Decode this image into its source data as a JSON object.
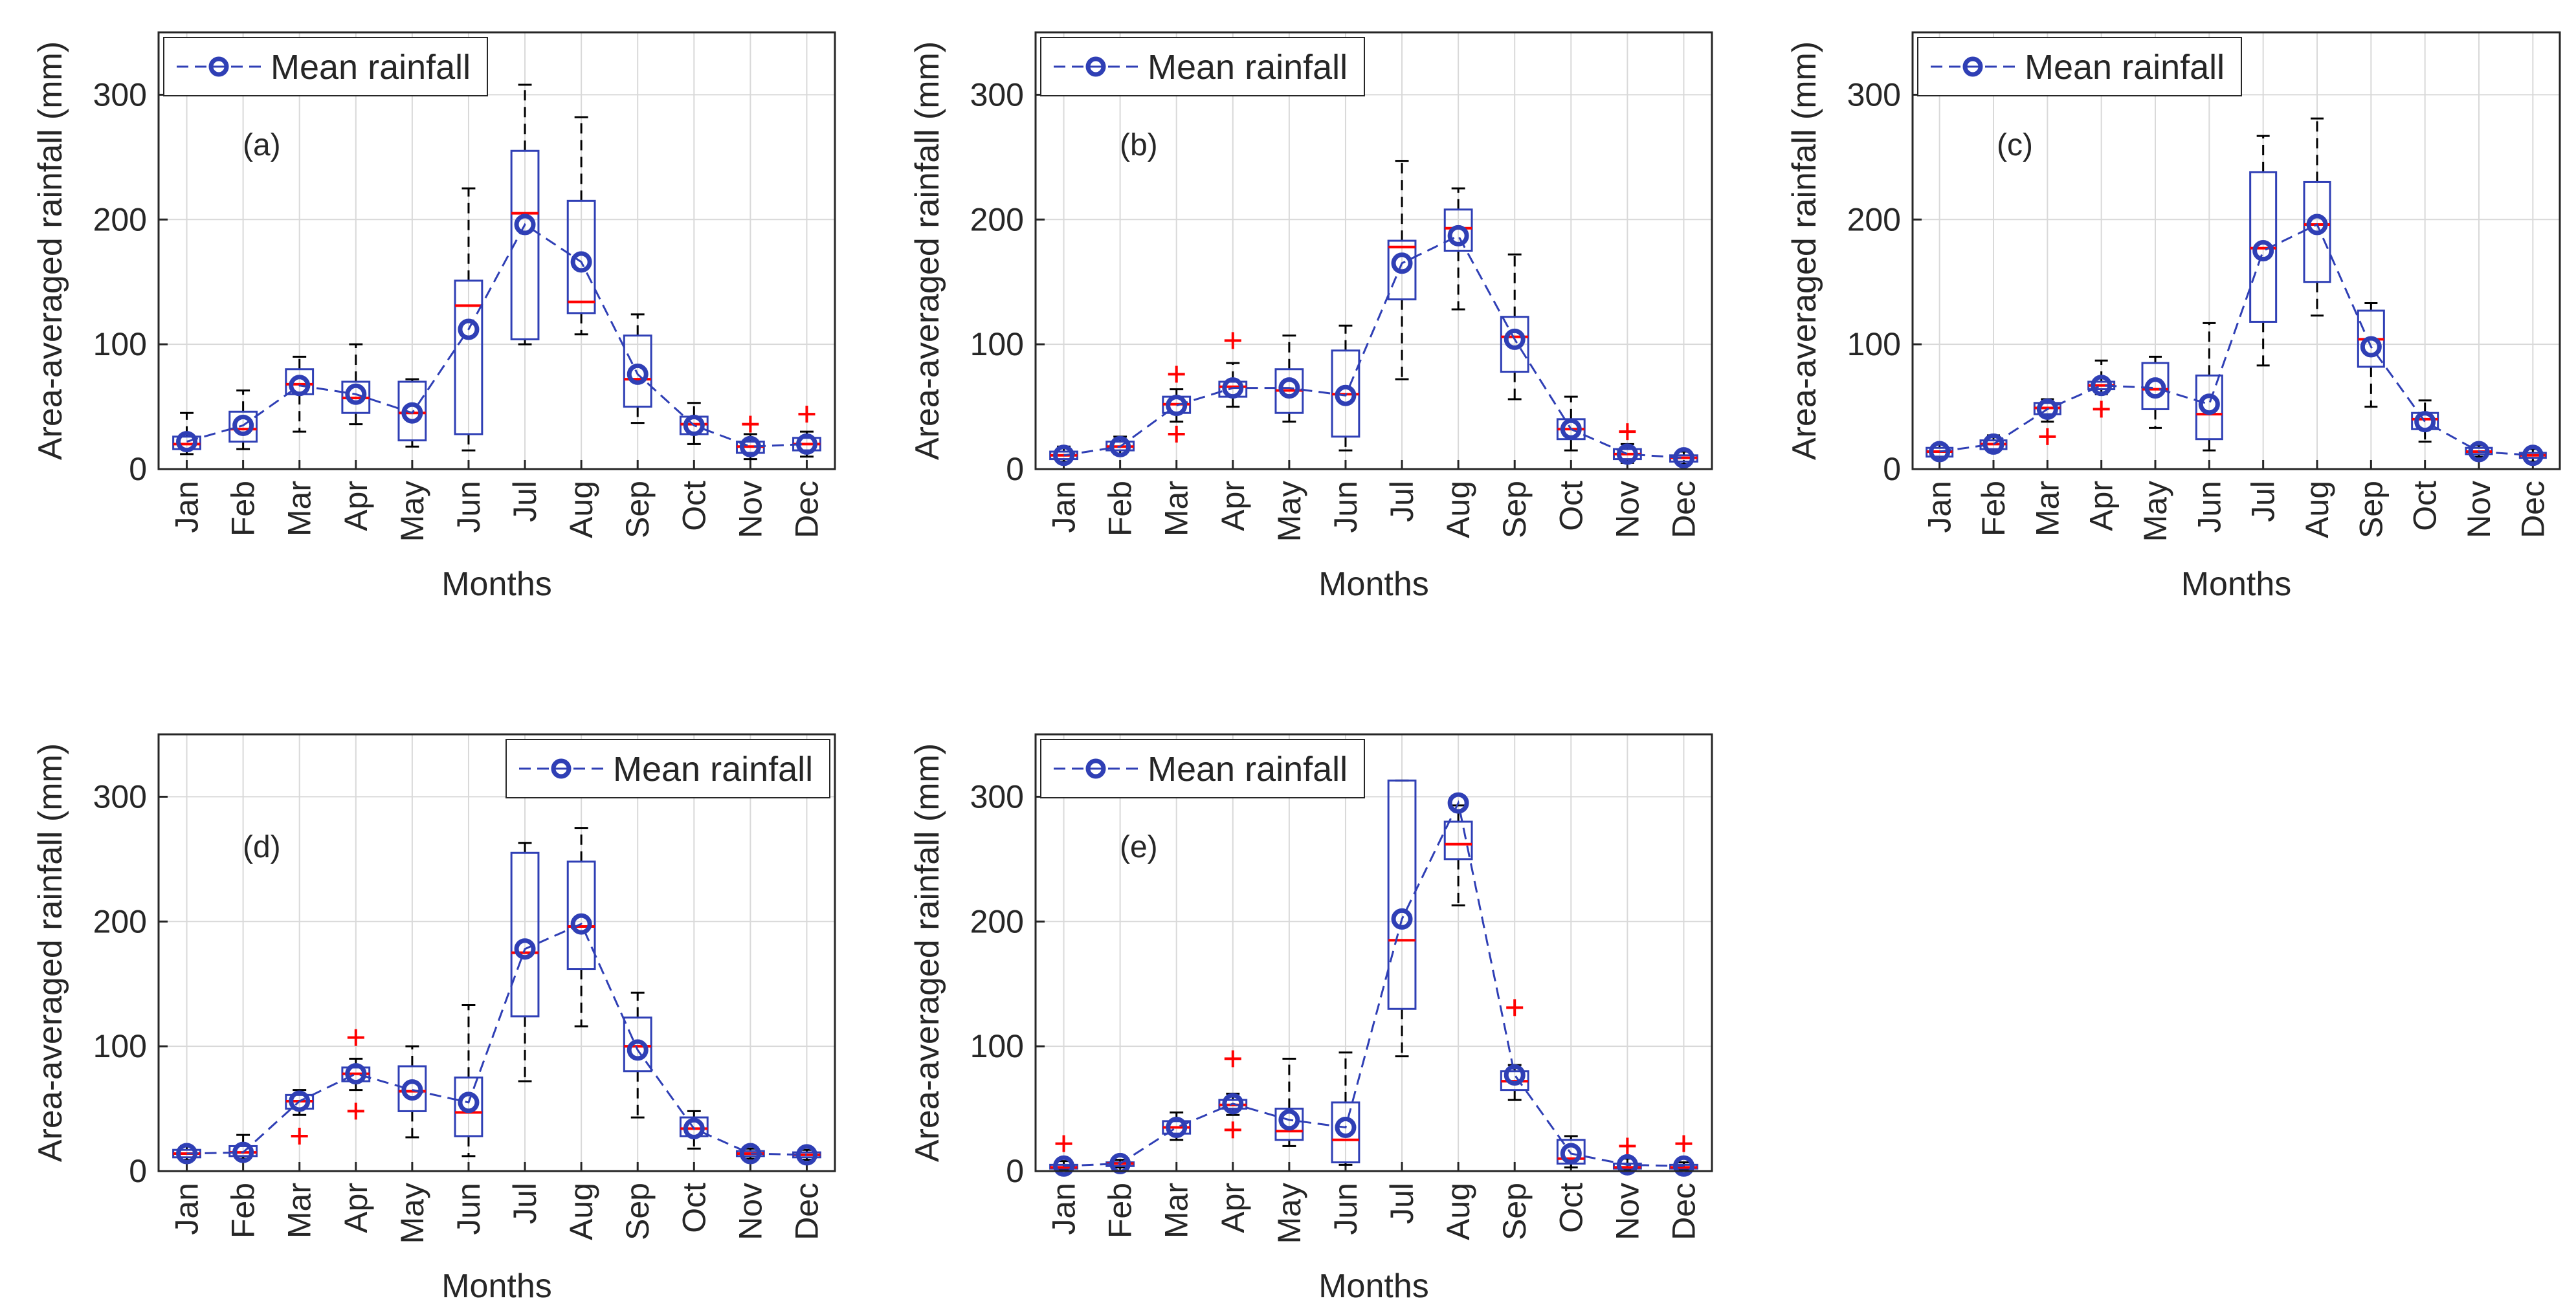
{
  "figure": {
    "colors": {
      "box": "#2f3fb5",
      "median": "#ff0000",
      "outlier": "#ff0000",
      "whisker": "#000000",
      "mean_line": "#2f3fb5",
      "grid": "#d9d9d9",
      "axis": "#262626"
    }
  },
  "chart_data": [
    {
      "type": "box",
      "panel_label": "(a)",
      "xlabel": "Months",
      "ylabel": "Area-averaged rainfall (mm)",
      "ylim": [
        0,
        350
      ],
      "yticks": [
        "0",
        "100",
        "200",
        "300"
      ],
      "legend": "Mean rainfall",
      "legend_position": "top-left",
      "categories": [
        "Jan",
        "Feb",
        "Mar",
        "Apr",
        "May",
        "Jun",
        "Jul",
        "Aug",
        "Sep",
        "Oct",
        "Nov",
        "Dec"
      ],
      "boxes": [
        {
          "whisker_low": 12,
          "q1": 16,
          "median": 20,
          "q3": 26,
          "whisker_high": 45,
          "mean": 22,
          "outliers": []
        },
        {
          "whisker_low": 16,
          "q1": 22,
          "median": 32,
          "q3": 46,
          "whisker_high": 63,
          "mean": 35,
          "outliers": []
        },
        {
          "whisker_low": 30,
          "q1": 60,
          "median": 68,
          "q3": 80,
          "whisker_high": 90,
          "mean": 67,
          "outliers": []
        },
        {
          "whisker_low": 36,
          "q1": 45,
          "median": 57,
          "q3": 70,
          "whisker_high": 100,
          "mean": 60,
          "outliers": []
        },
        {
          "whisker_low": 18,
          "q1": 23,
          "median": 45,
          "q3": 70,
          "whisker_high": 72,
          "mean": 45,
          "outliers": []
        },
        {
          "whisker_low": 15,
          "q1": 28,
          "median": 131,
          "q3": 151,
          "whisker_high": 225,
          "mean": 112,
          "outliers": []
        },
        {
          "whisker_low": 100,
          "q1": 104,
          "median": 205,
          "q3": 255,
          "whisker_high": 308,
          "mean": 196,
          "outliers": []
        },
        {
          "whisker_low": 108,
          "q1": 125,
          "median": 134,
          "q3": 215,
          "whisker_high": 282,
          "mean": 166,
          "outliers": []
        },
        {
          "whisker_low": 37,
          "q1": 50,
          "median": 72,
          "q3": 107,
          "whisker_high": 124,
          "mean": 76,
          "outliers": []
        },
        {
          "whisker_low": 20,
          "q1": 28,
          "median": 36,
          "q3": 42,
          "whisker_high": 53,
          "mean": 35,
          "outliers": []
        },
        {
          "whisker_low": 8,
          "q1": 13,
          "median": 18,
          "q3": 22,
          "whisker_high": 28,
          "mean": 18,
          "outliers": [
            36
          ]
        },
        {
          "whisker_low": 10,
          "q1": 15,
          "median": 20,
          "q3": 25,
          "whisker_high": 30,
          "mean": 20,
          "outliers": [
            44
          ]
        }
      ]
    },
    {
      "type": "box",
      "panel_label": "(b)",
      "xlabel": "Months",
      "ylabel": "Area-averaged rainfall (mm)",
      "ylim": [
        0,
        350
      ],
      "yticks": [
        "0",
        "100",
        "200",
        "300"
      ],
      "legend": "Mean rainfall",
      "legend_position": "top-left",
      "categories": [
        "Jan",
        "Feb",
        "Mar",
        "Apr",
        "May",
        "Jun",
        "Jul",
        "Aug",
        "Sep",
        "Oct",
        "Nov",
        "Dec"
      ],
      "boxes": [
        {
          "whisker_low": 6,
          "q1": 8,
          "median": 11,
          "q3": 14,
          "whisker_high": 18,
          "mean": 11,
          "outliers": []
        },
        {
          "whisker_low": 12,
          "q1": 15,
          "median": 18,
          "q3": 22,
          "whisker_high": 26,
          "mean": 18,
          "outliers": []
        },
        {
          "whisker_low": 38,
          "q1": 45,
          "median": 52,
          "q3": 58,
          "whisker_high": 64,
          "mean": 51,
          "outliers": [
            76,
            28
          ]
        },
        {
          "whisker_low": 50,
          "q1": 58,
          "median": 66,
          "q3": 70,
          "whisker_high": 85,
          "mean": 65,
          "outliers": [
            103
          ]
        },
        {
          "whisker_low": 38,
          "q1": 45,
          "median": 63,
          "q3": 80,
          "whisker_high": 107,
          "mean": 65,
          "outliers": []
        },
        {
          "whisker_low": 15,
          "q1": 26,
          "median": 60,
          "q3": 95,
          "whisker_high": 115,
          "mean": 59,
          "outliers": []
        },
        {
          "whisker_low": 72,
          "q1": 136,
          "median": 178,
          "q3": 183,
          "whisker_high": 247,
          "mean": 165,
          "outliers": []
        },
        {
          "whisker_low": 128,
          "q1": 175,
          "median": 193,
          "q3": 208,
          "whisker_high": 225,
          "mean": 187,
          "outliers": []
        },
        {
          "whisker_low": 56,
          "q1": 78,
          "median": 106,
          "q3": 122,
          "whisker_high": 172,
          "mean": 104,
          "outliers": []
        },
        {
          "whisker_low": 15,
          "q1": 24,
          "median": 32,
          "q3": 40,
          "whisker_high": 58,
          "mean": 32,
          "outliers": []
        },
        {
          "whisker_low": 5,
          "q1": 8,
          "median": 12,
          "q3": 16,
          "whisker_high": 20,
          "mean": 12,
          "outliers": [
            30
          ]
        },
        {
          "whisker_low": 4,
          "q1": 6,
          "median": 9,
          "q3": 11,
          "whisker_high": 14,
          "mean": 9,
          "outliers": []
        }
      ]
    },
    {
      "type": "box",
      "panel_label": "(c)",
      "xlabel": "Months",
      "ylabel": "Area-averaged rainfall (mm)",
      "ylim": [
        0,
        350
      ],
      "yticks": [
        "0",
        "100",
        "200",
        "300"
      ],
      "legend": "Mean rainfall",
      "legend_position": "top-left",
      "categories": [
        "Jan",
        "Feb",
        "Mar",
        "Apr",
        "May",
        "Jun",
        "Jul",
        "Aug",
        "Sep",
        "Oct",
        "Nov",
        "Dec"
      ],
      "boxes": [
        {
          "whisker_low": 8,
          "q1": 10,
          "median": 14,
          "q3": 17,
          "whisker_high": 20,
          "mean": 14,
          "outliers": []
        },
        {
          "whisker_low": 14,
          "q1": 16,
          "median": 20,
          "q3": 23,
          "whisker_high": 27,
          "mean": 20,
          "outliers": []
        },
        {
          "whisker_low": 38,
          "q1": 44,
          "median": 49,
          "q3": 53,
          "whisker_high": 56,
          "mean": 48,
          "outliers": [
            26
          ]
        },
        {
          "whisker_low": 60,
          "q1": 64,
          "median": 67,
          "q3": 70,
          "whisker_high": 87,
          "mean": 67,
          "outliers": [
            48
          ]
        },
        {
          "whisker_low": 33,
          "q1": 48,
          "median": 64,
          "q3": 85,
          "whisker_high": 90,
          "mean": 65,
          "outliers": []
        },
        {
          "whisker_low": 15,
          "q1": 24,
          "median": 44,
          "q3": 75,
          "whisker_high": 117,
          "mean": 52,
          "outliers": []
        },
        {
          "whisker_low": 83,
          "q1": 118,
          "median": 177,
          "q3": 238,
          "whisker_high": 267,
          "mean": 175,
          "outliers": []
        },
        {
          "whisker_low": 123,
          "q1": 150,
          "median": 196,
          "q3": 230,
          "whisker_high": 281,
          "mean": 196,
          "outliers": []
        },
        {
          "whisker_low": 50,
          "q1": 82,
          "median": 104,
          "q3": 127,
          "whisker_high": 133,
          "mean": 98,
          "outliers": []
        },
        {
          "whisker_low": 22,
          "q1": 32,
          "median": 40,
          "q3": 45,
          "whisker_high": 55,
          "mean": 38,
          "outliers": []
        },
        {
          "whisker_low": 10,
          "q1": 12,
          "median": 14,
          "q3": 17,
          "whisker_high": 19,
          "mean": 14,
          "outliers": []
        },
        {
          "whisker_low": 6,
          "q1": 9,
          "median": 11,
          "q3": 13,
          "whisker_high": 16,
          "mean": 11,
          "outliers": []
        }
      ]
    },
    {
      "type": "box",
      "panel_label": "(d)",
      "xlabel": "Months",
      "ylabel": "Area-averaged rainfall (mm)",
      "ylim": [
        0,
        350
      ],
      "yticks": [
        "0",
        "100",
        "200",
        "300"
      ],
      "legend": "Mean rainfall",
      "legend_position": "top-right",
      "categories": [
        "Jan",
        "Feb",
        "Mar",
        "Apr",
        "May",
        "Jun",
        "Jul",
        "Aug",
        "Sep",
        "Oct",
        "Nov",
        "Dec"
      ],
      "boxes": [
        {
          "whisker_low": 9,
          "q1": 11,
          "median": 14,
          "q3": 17,
          "whisker_high": 20,
          "mean": 14,
          "outliers": []
        },
        {
          "whisker_low": 10,
          "q1": 12,
          "median": 15,
          "q3": 20,
          "whisker_high": 29,
          "mean": 15,
          "outliers": []
        },
        {
          "whisker_low": 45,
          "q1": 50,
          "median": 56,
          "q3": 61,
          "whisker_high": 65,
          "mean": 56,
          "outliers": [
            28
          ]
        },
        {
          "whisker_low": 65,
          "q1": 72,
          "median": 78,
          "q3": 83,
          "whisker_high": 90,
          "mean": 78,
          "outliers": [
            107,
            48
          ]
        },
        {
          "whisker_low": 27,
          "q1": 48,
          "median": 64,
          "q3": 84,
          "whisker_high": 100,
          "mean": 65,
          "outliers": []
        },
        {
          "whisker_low": 12,
          "q1": 28,
          "median": 47,
          "q3": 75,
          "whisker_high": 133,
          "mean": 55,
          "outliers": []
        },
        {
          "whisker_low": 72,
          "q1": 124,
          "median": 175,
          "q3": 255,
          "whisker_high": 263,
          "mean": 178,
          "outliers": []
        },
        {
          "whisker_low": 116,
          "q1": 162,
          "median": 196,
          "q3": 248,
          "whisker_high": 275,
          "mean": 198,
          "outliers": []
        },
        {
          "whisker_low": 43,
          "q1": 80,
          "median": 100,
          "q3": 123,
          "whisker_high": 143,
          "mean": 97,
          "outliers": []
        },
        {
          "whisker_low": 18,
          "q1": 28,
          "median": 34,
          "q3": 43,
          "whisker_high": 48,
          "mean": 34,
          "outliers": []
        },
        {
          "whisker_low": 10,
          "q1": 12,
          "median": 14,
          "q3": 16,
          "whisker_high": 18,
          "mean": 14,
          "outliers": []
        },
        {
          "whisker_low": 9,
          "q1": 11,
          "median": 13,
          "q3": 15,
          "whisker_high": 17,
          "mean": 13,
          "outliers": []
        }
      ]
    },
    {
      "type": "box",
      "panel_label": "(e)",
      "xlabel": "Months",
      "ylabel": "Area-averaged rainfall (mm)",
      "ylim": [
        0,
        350
      ],
      "yticks": [
        "0",
        "100",
        "200",
        "300"
      ],
      "legend": "Mean rainfall",
      "legend_position": "top-left",
      "categories": [
        "Jan",
        "Feb",
        "Mar",
        "Apr",
        "May",
        "Jun",
        "Jul",
        "Aug",
        "Sep",
        "Oct",
        "Nov",
        "Dec"
      ],
      "boxes": [
        {
          "whisker_low": 1,
          "q1": 2,
          "median": 3,
          "q3": 5,
          "whisker_high": 8,
          "mean": 4,
          "outliers": [
            22
          ]
        },
        {
          "whisker_low": 3,
          "q1": 4,
          "median": 6,
          "q3": 7,
          "whisker_high": 9,
          "mean": 6,
          "outliers": []
        },
        {
          "whisker_low": 25,
          "q1": 30,
          "median": 35,
          "q3": 40,
          "whisker_high": 47,
          "mean": 35,
          "outliers": []
        },
        {
          "whisker_low": 45,
          "q1": 50,
          "median": 53,
          "q3": 57,
          "whisker_high": 62,
          "mean": 54,
          "outliers": [
            90,
            33
          ]
        },
        {
          "whisker_low": 20,
          "q1": 25,
          "median": 32,
          "q3": 50,
          "whisker_high": 90,
          "mean": 41,
          "outliers": []
        },
        {
          "whisker_low": 5,
          "q1": 7,
          "median": 25,
          "q3": 55,
          "whisker_high": 95,
          "mean": 35,
          "outliers": []
        },
        {
          "whisker_low": 92,
          "q1": 130,
          "median": 185,
          "q3": 313,
          "whisker_high": 313,
          "mean": 202,
          "outliers": []
        },
        {
          "whisker_low": 213,
          "q1": 250,
          "median": 262,
          "q3": 280,
          "whisker_high": 293,
          "mean": 295,
          "outliers": []
        },
        {
          "whisker_low": 57,
          "q1": 65,
          "median": 72,
          "q3": 80,
          "whisker_high": 85,
          "mean": 77,
          "outliers": [
            131
          ]
        },
        {
          "whisker_low": 3,
          "q1": 6,
          "median": 10,
          "q3": 25,
          "whisker_high": 28,
          "mean": 14,
          "outliers": []
        },
        {
          "whisker_low": 1,
          "q1": 2,
          "median": 3,
          "q3": 6,
          "whisker_high": 10,
          "mean": 5,
          "outliers": [
            20
          ]
        },
        {
          "whisker_low": 1,
          "q1": 2,
          "median": 3,
          "q3": 5,
          "whisker_high": 7,
          "mean": 4,
          "outliers": [
            22
          ]
        }
      ]
    }
  ]
}
